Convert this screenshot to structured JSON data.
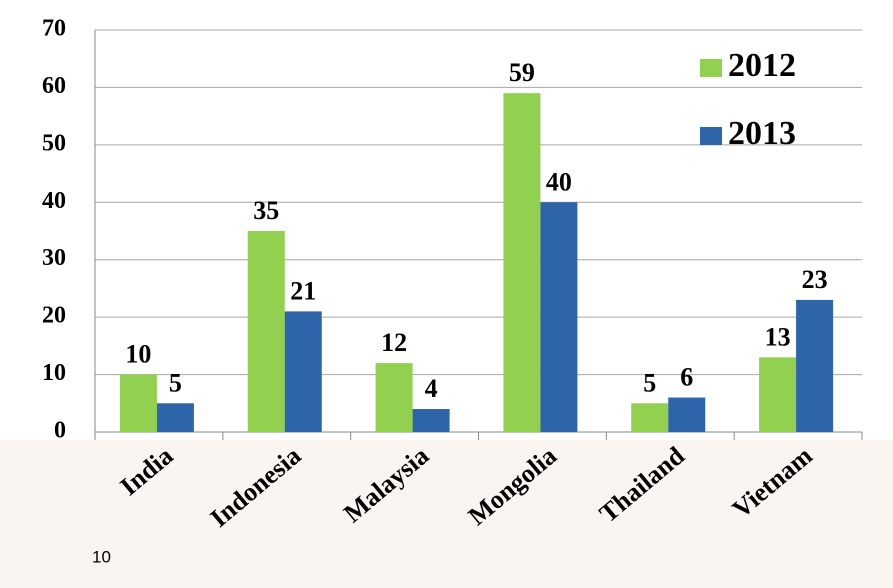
{
  "chart_data": {
    "type": "bar",
    "categories": [
      "India",
      "Indonesia",
      "Malaysia",
      "Mongolia",
      "Thailand",
      "Vietnam"
    ],
    "series": [
      {
        "name": "2012",
        "color": "#92d050",
        "values": [
          10,
          35,
          12,
          59,
          5,
          13
        ]
      },
      {
        "name": "2013",
        "color": "#2e64a8",
        "values": [
          5,
          21,
          4,
          40,
          6,
          23
        ]
      }
    ],
    "ylim": [
      0,
      70
    ],
    "yticks": [
      0,
      10,
      20,
      30,
      40,
      50,
      60,
      70
    ],
    "grid": true,
    "legend": "top-right"
  },
  "page_number": "10"
}
